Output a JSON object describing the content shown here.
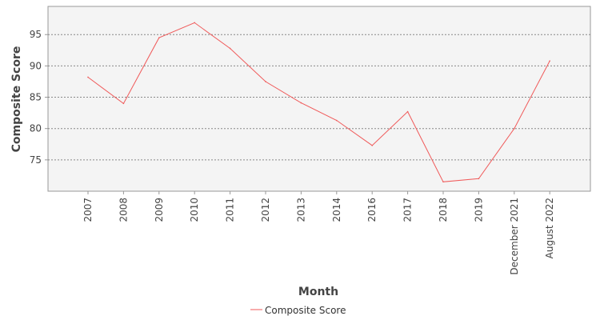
{
  "chart_data": {
    "type": "line",
    "title": "",
    "xlabel": "Month",
    "ylabel": "Composite Score",
    "categories": [
      "2007",
      "2008",
      "2009",
      "2010",
      "2011",
      "2012",
      "2013",
      "2014",
      "2016",
      "2017",
      "2018",
      "2019",
      "December 2021",
      "August 2022"
    ],
    "series": [
      {
        "name": "Composite Score",
        "color": "#f05a5a",
        "values": [
          88.2,
          84.0,
          94.5,
          96.9,
          92.8,
          87.5,
          84.1,
          81.3,
          77.3,
          82.7,
          71.5,
          72.0,
          80.0,
          90.8
        ]
      }
    ],
    "y_ticks": [
      75,
      80,
      85,
      90,
      95
    ],
    "ylim": [
      70.0,
      99.5
    ],
    "grid": true,
    "legend_position": "bottom",
    "plot_background": "#f4f4f4",
    "grid_color": "#888888"
  }
}
